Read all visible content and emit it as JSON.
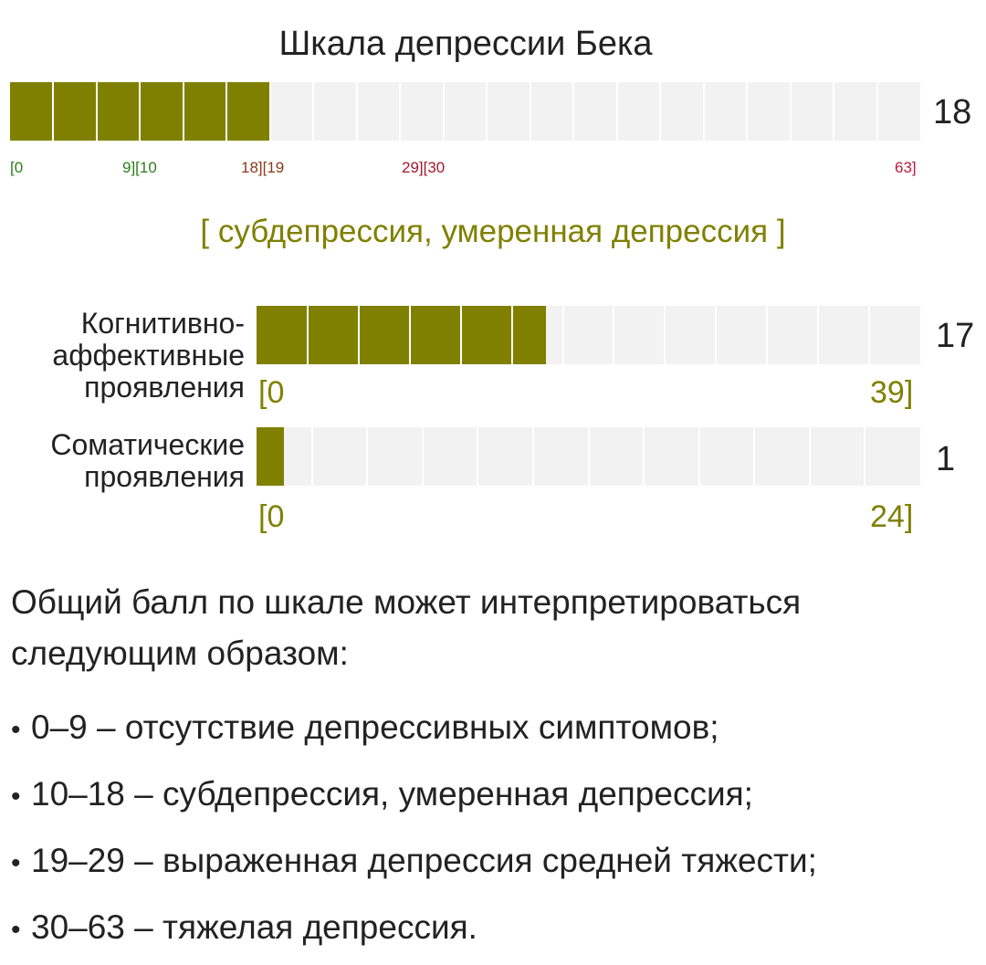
{
  "title": "Шкала депрессии Бека",
  "main_scale": {
    "score": "18",
    "value": 18,
    "max": 63,
    "ranges": [
      {
        "text": "[0",
        "color": "#2e7d1b"
      },
      {
        "text": "9][10",
        "color": "#2e7d1b"
      },
      {
        "text": "18][19",
        "color": "#8b3a1a"
      },
      {
        "text": "29][30",
        "color": "#a3182e"
      },
      {
        "text": "63]",
        "color": "#c2183f"
      }
    ]
  },
  "category": "[ субдепрессия, умеренная депрессия ]",
  "subscales": [
    {
      "label": "Когнитивно-\nаффективные\nпроявления",
      "score": "17",
      "value": 17,
      "max": 39,
      "range_min": "[0",
      "range_max": "39]"
    },
    {
      "label": "Соматические\nпроявления",
      "score": "1",
      "value": 1,
      "max": 24,
      "range_min": "[0",
      "range_max": "24]"
    }
  ],
  "interpretation": {
    "intro": "Общий балл по шкале может интерпретироваться следующим образом:",
    "items": [
      "0–9 – отсутствие депрессивных симптомов;",
      "10–18 – субдепрессия, умеренная депрессия;",
      "19–29 – выраженная депрессия средней тяжести;",
      "30–63 – тяжелая депрессия."
    ]
  },
  "colors": {
    "fill": "#808000",
    "track": "#f2f2f2"
  }
}
